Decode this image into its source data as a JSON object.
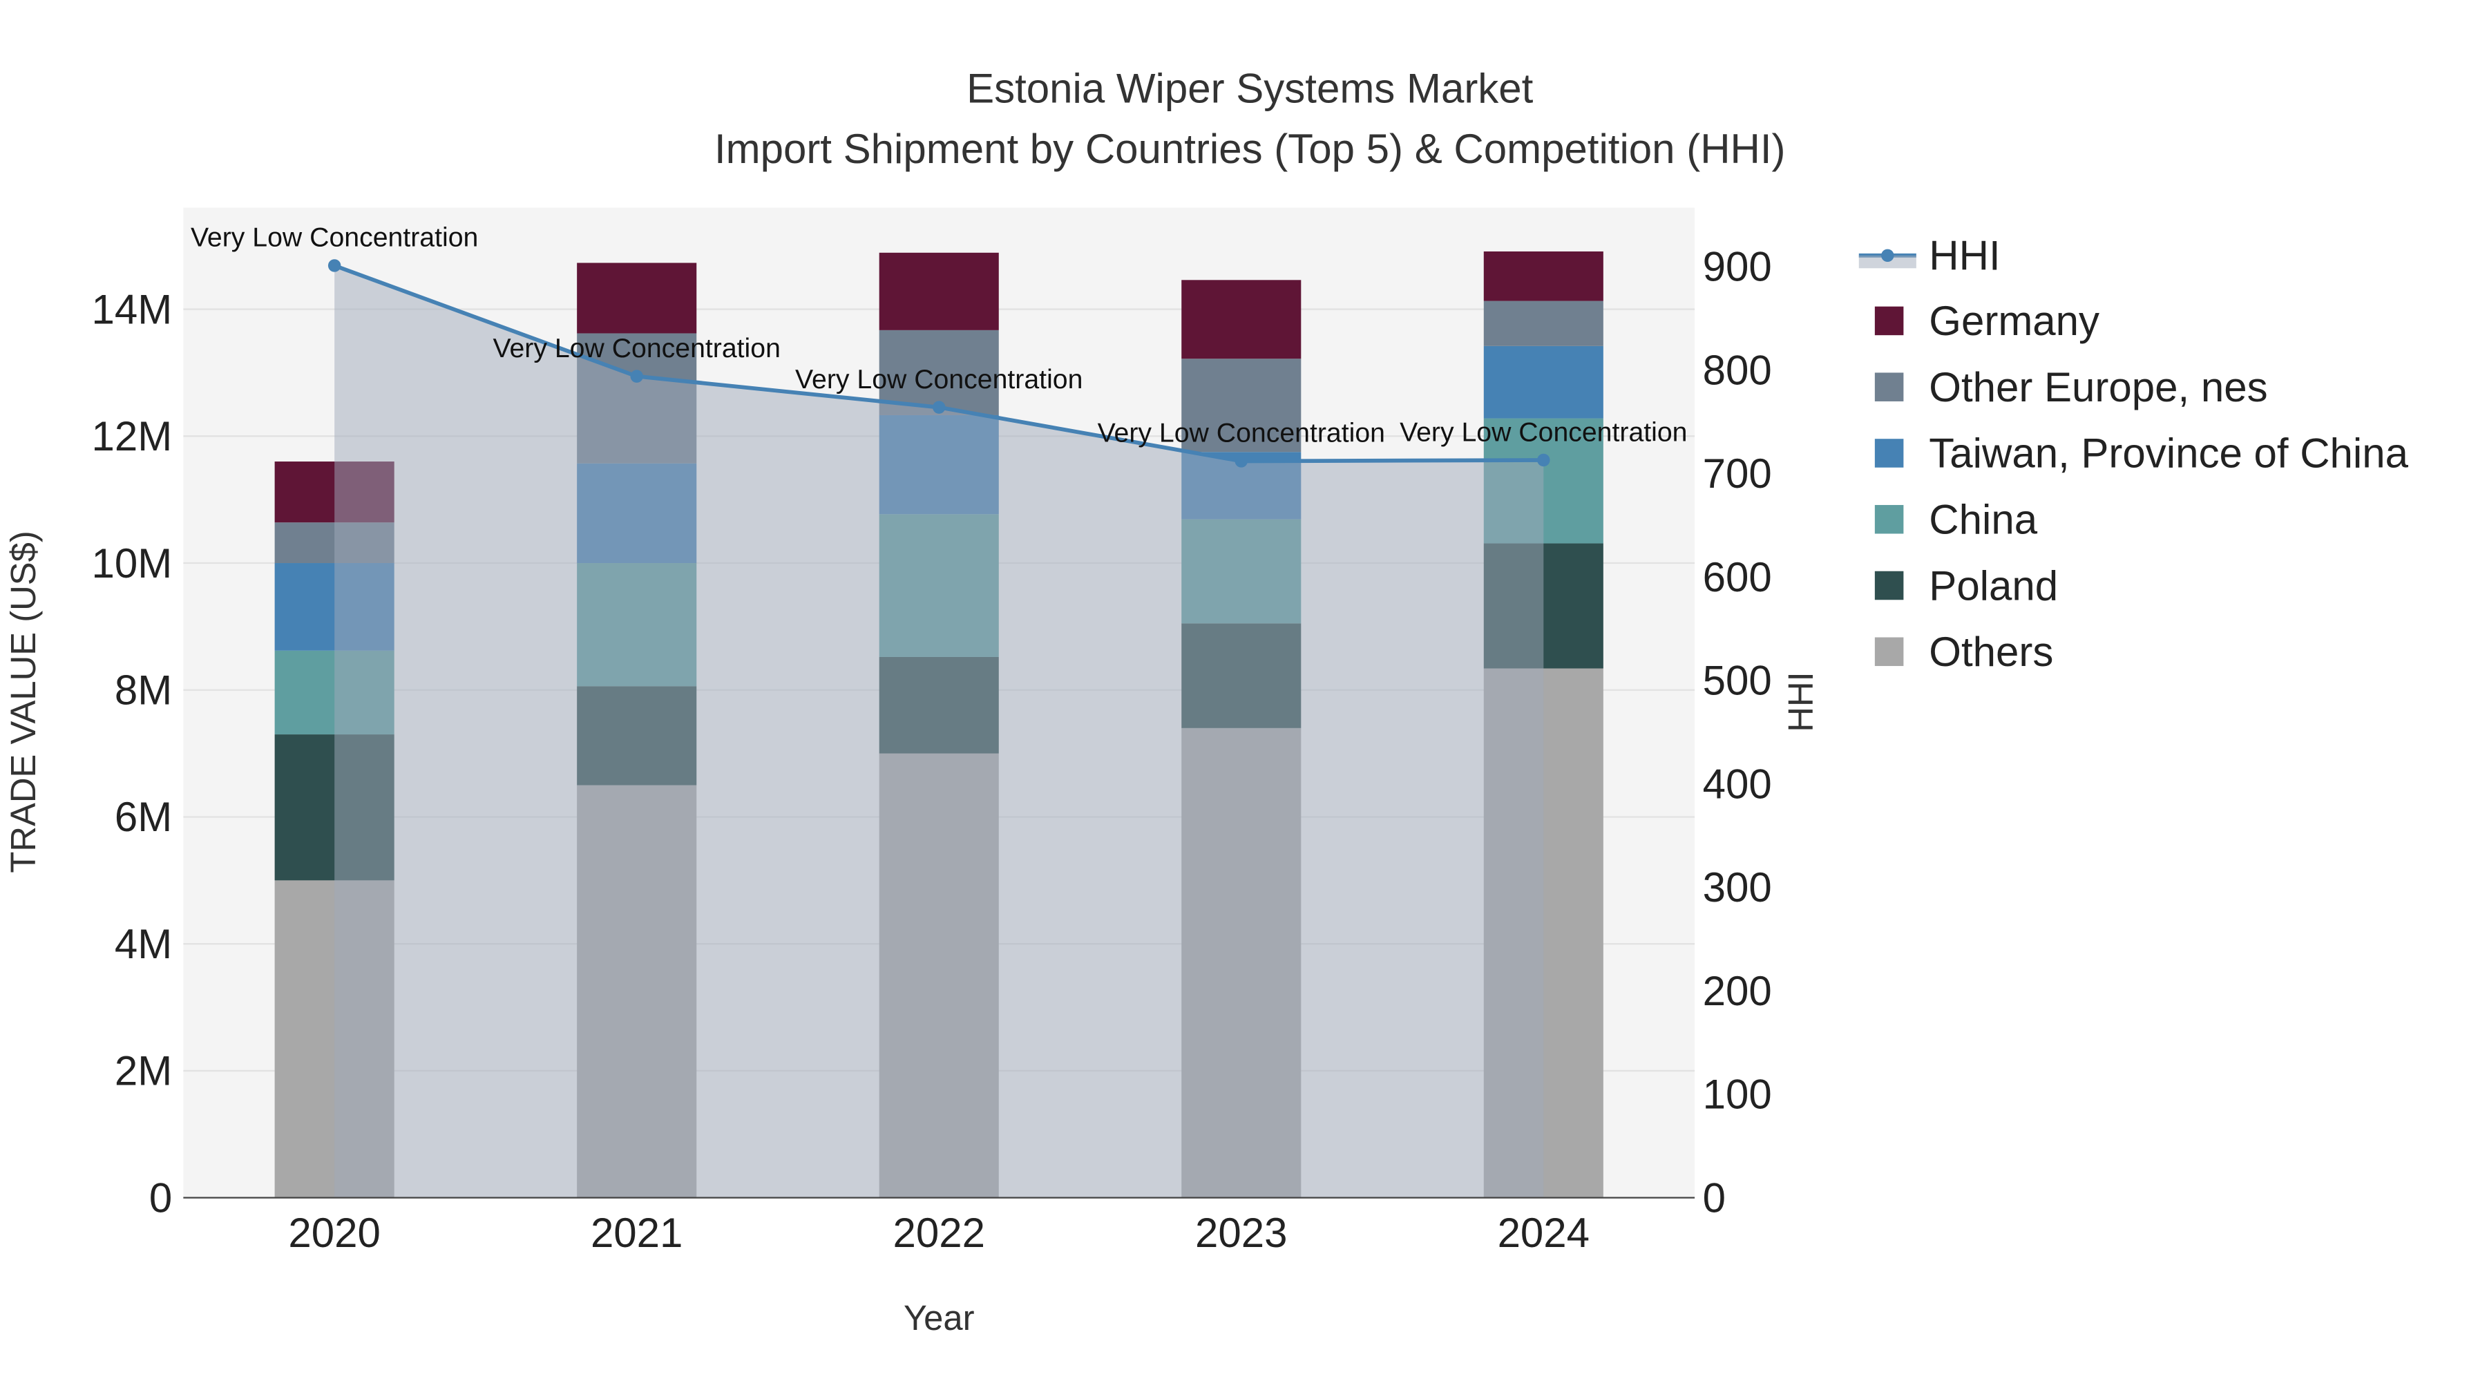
{
  "chart_data": {
    "type": "bar",
    "title": "Estonia Wiper Systems Market",
    "subtitle": "Import Shipment by Countries (Top 5) & Competition (HHI)",
    "xlabel": "Year",
    "ylabel": "TRADE VALUE (US$)",
    "y2label": "HHI",
    "categories": [
      "2020",
      "2021",
      "2022",
      "2023",
      "2024"
    ],
    "ylim": [
      0,
      15600000
    ],
    "y2lim": [
      0,
      957
    ],
    "yticks": [
      0,
      2000000,
      4000000,
      6000000,
      8000000,
      10000000,
      12000000,
      14000000
    ],
    "ytick_labels": [
      "0",
      "2M",
      "4M",
      "6M",
      "8M",
      "10M",
      "12M",
      "14M"
    ],
    "y2ticks": [
      0,
      100,
      200,
      300,
      400,
      500,
      600,
      700,
      800,
      900
    ],
    "y2tick_labels": [
      "0",
      "100",
      "200",
      "300",
      "400",
      "500",
      "600",
      "700",
      "800",
      "900"
    ],
    "stacked": true,
    "series": [
      {
        "name": "Others",
        "color": "#a8a8a8",
        "values": [
          5000000,
          6500000,
          7000000,
          7400000,
          8340000
        ]
      },
      {
        "name": "Poland",
        "color": "#2f4f4f",
        "values": [
          2300000,
          1560000,
          1520000,
          1650000,
          1970000
        ]
      },
      {
        "name": "China",
        "color": "#5f9ea0",
        "values": [
          1320000,
          1940000,
          2250000,
          1640000,
          1970000
        ]
      },
      {
        "name": "Taiwan, Province of China",
        "color": "#4682b4",
        "values": [
          1380000,
          1570000,
          1560000,
          1060000,
          1140000
        ]
      },
      {
        "name": "Other Europe, nes",
        "color": "#708090",
        "values": [
          640000,
          2050000,
          1340000,
          1470000,
          710000
        ]
      },
      {
        "name": "Germany",
        "color": "#5f1536",
        "values": [
          960000,
          1110000,
          1220000,
          1240000,
          780000
        ]
      }
    ],
    "line": {
      "name": "HHI",
      "color": "#4682b4",
      "values": [
        901,
        794,
        764,
        712,
        713
      ],
      "annotations": [
        "Very Low Concentration",
        "Very Low Concentration",
        "Very Low Concentration",
        "Very Low Concentration",
        "Very Low Concentration"
      ]
    },
    "legend_placement": "right",
    "grid": true
  }
}
